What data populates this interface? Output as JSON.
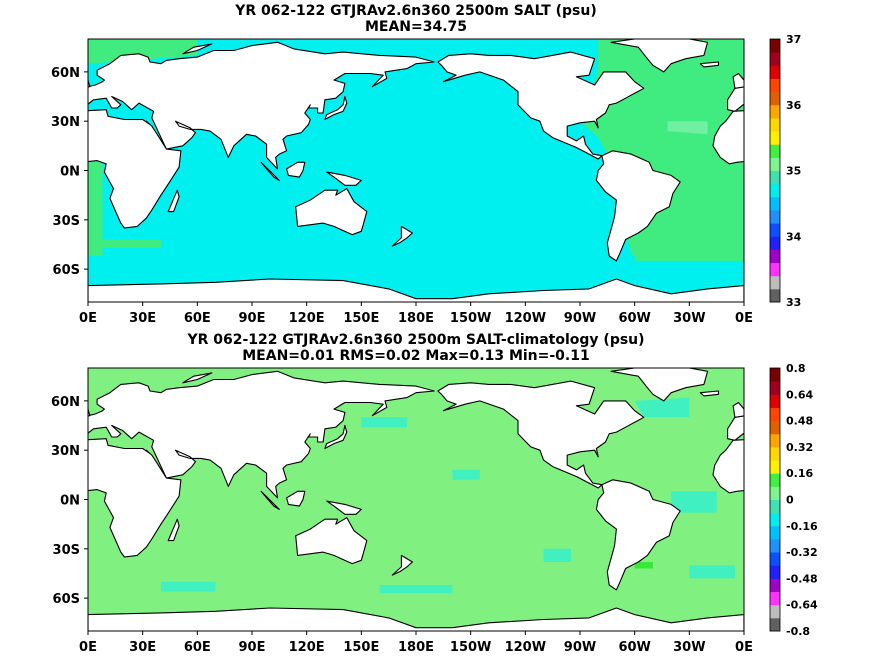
{
  "panels": [
    {
      "title": "YR 062-122 GTJRAv2.6n360 2500m SALT (psu)",
      "stats": "MEAN=34.75"
    },
    {
      "title": "YR 062-122 GTJRAv2.6n360 2500m SALT-climatology (psu)",
      "stats": "MEAN=0.01   RMS=0.02   Max=0.13   Min=-0.11"
    }
  ],
  "chart_data": [
    {
      "type": "heatmap",
      "title": "YR 062-122 GTJRAv2.6n360 2500m SALT (psu)",
      "subtitle": "MEAN=34.75",
      "x_ticks": [
        "0E",
        "30E",
        "60E",
        "90E",
        "120E",
        "150E",
        "180E",
        "150W",
        "120W",
        "90W",
        "60W",
        "30W",
        "0E"
      ],
      "y_ticks": [
        "60N",
        "30N",
        "0N",
        "30S",
        "60S"
      ],
      "colorbar_ticks": [
        "37",
        "36",
        "35",
        "34",
        "33"
      ],
      "colorbar_range": [
        33,
        37
      ],
      "colorbar_colors": [
        "#606060",
        "#bdbdbd",
        "#ff33ff",
        "#a000c8",
        "#2020ff",
        "#0a50ff",
        "#1e90ff",
        "#00bfff",
        "#00eeee",
        "#40e0b0",
        "#7df58f",
        "#40f040",
        "#fff000",
        "#ffd700",
        "#ffa500",
        "#e06000",
        "#ff4500",
        "#e00000",
        "#a00020",
        "#7a0000"
      ],
      "fill_colors": {
        "ocean_main": "#00f0f0",
        "ocean_atlantic": "#40ec80",
        "ocean_med": "#70f0a0",
        "land": "#ffffff"
      }
    },
    {
      "type": "heatmap",
      "title": "YR 062-122 GTJRAv2.6n360 2500m SALT-climatology (psu)",
      "subtitle": "MEAN=0.01   RMS=0.02   Max=0.13   Min=-0.11",
      "x_ticks": [
        "0E",
        "30E",
        "60E",
        "90E",
        "120E",
        "150E",
        "180E",
        "150W",
        "120W",
        "90W",
        "60W",
        "30W",
        "0E"
      ],
      "y_ticks": [
        "60N",
        "30N",
        "0N",
        "30S",
        "60S"
      ],
      "colorbar_ticks": [
        "0.8",
        "0.64",
        "0.48",
        "0.32",
        "0.16",
        "0",
        "-0.16",
        "-0.32",
        "-0.48",
        "-0.64",
        "-0.8"
      ],
      "colorbar_range": [
        -0.8,
        0.8
      ],
      "colorbar_colors": [
        "#606060",
        "#bdbdbd",
        "#ff33ff",
        "#a000c8",
        "#2020ff",
        "#0a50ff",
        "#1e90ff",
        "#00bfff",
        "#00eeee",
        "#40e0b0",
        "#7df58f",
        "#40f040",
        "#fff000",
        "#ffd700",
        "#ffa500",
        "#e06000",
        "#ff4500",
        "#e00000",
        "#a00020",
        "#7a0000"
      ],
      "fill_colors": {
        "ocean_main": "#80f080",
        "ocean_patch": "#40f0c0",
        "ocean_strong": "#38e838",
        "land": "#ffffff"
      }
    }
  ]
}
